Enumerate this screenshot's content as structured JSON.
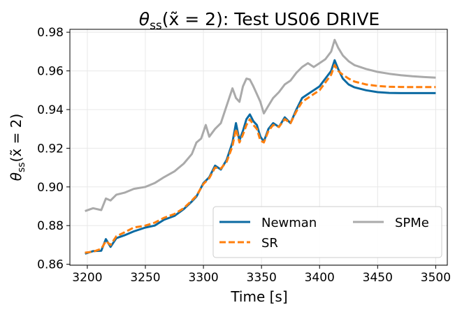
{
  "chart_data": {
    "type": "line",
    "title": "θ_ss(x̃ = 2): Test US06 DRIVE",
    "title_parts": {
      "sym": "θ",
      "sub": "ss",
      "rest": "(x̃ = 2): Test US06 DRIVE"
    },
    "xlabel": "Time [s]",
    "ylabel": "θ_ss(x̃ = 2)",
    "ylabel_parts": {
      "sym": "θ",
      "sub": "ss",
      "rest": "(x̃ = 2)"
    },
    "xlim": [
      3185,
      3510
    ],
    "ylim": [
      0.8595,
      0.9815
    ],
    "xticks": [
      3200,
      3250,
      3300,
      3350,
      3400,
      3450,
      3500
    ],
    "yticks": [
      0.86,
      0.88,
      0.9,
      0.92,
      0.94,
      0.96,
      0.98
    ],
    "xtick_labels": [
      "3200",
      "3250",
      "3300",
      "3350",
      "3400",
      "3450",
      "3500"
    ],
    "ytick_labels": [
      "0.86",
      "0.88",
      "0.90",
      "0.92",
      "0.94",
      "0.96",
      "0.98"
    ],
    "grid": true,
    "legend_placement": "lower-right",
    "series": [
      {
        "name": "Newman",
        "color": "#0b6aa2",
        "dash": "solid",
        "x": [
          3198,
          3205,
          3212,
          3216,
          3220,
          3225,
          3232,
          3240,
          3250,
          3258,
          3266,
          3275,
          3283,
          3290,
          3294,
          3300,
          3305,
          3310,
          3315,
          3320,
          3325,
          3328,
          3331,
          3334,
          3337,
          3340,
          3343,
          3346,
          3349,
          3352,
          3356,
          3360,
          3365,
          3370,
          3375,
          3380,
          3385,
          3390,
          3395,
          3400,
          3405,
          3410,
          3413,
          3416,
          3420,
          3425,
          3430,
          3440,
          3450,
          3460,
          3470,
          3480,
          3490,
          3500
        ],
        "y": [
          0.8655,
          0.8668,
          0.867,
          0.873,
          0.869,
          0.8735,
          0.875,
          0.877,
          0.879,
          0.88,
          0.883,
          0.885,
          0.8885,
          0.8925,
          0.895,
          0.902,
          0.905,
          0.911,
          0.909,
          0.914,
          0.923,
          0.933,
          0.924,
          0.929,
          0.935,
          0.9375,
          0.934,
          0.932,
          0.926,
          0.9235,
          0.93,
          0.933,
          0.931,
          0.936,
          0.933,
          0.94,
          0.946,
          0.948,
          0.95,
          0.952,
          0.956,
          0.96,
          0.9655,
          0.961,
          0.956,
          0.953,
          0.9515,
          0.95,
          0.949,
          0.9486,
          0.9485,
          0.9485,
          0.9485,
          0.9485
        ]
      },
      {
        "name": "SR",
        "color": "#ff7f0e",
        "dash": "dashed",
        "x": [
          3198,
          3205,
          3212,
          3216,
          3220,
          3225,
          3232,
          3240,
          3250,
          3258,
          3266,
          3275,
          3283,
          3290,
          3294,
          3300,
          3305,
          3310,
          3315,
          3320,
          3325,
          3328,
          3331,
          3334,
          3337,
          3340,
          3343,
          3346,
          3349,
          3352,
          3356,
          3360,
          3365,
          3370,
          3375,
          3380,
          3385,
          3390,
          3395,
          3400,
          3405,
          3410,
          3413,
          3416,
          3420,
          3425,
          3430,
          3440,
          3450,
          3460,
          3470,
          3480,
          3490,
          3500
        ],
        "y": [
          0.866,
          0.8665,
          0.868,
          0.872,
          0.87,
          0.8745,
          0.8765,
          0.879,
          0.88,
          0.8815,
          0.884,
          0.886,
          0.889,
          0.893,
          0.8955,
          0.9015,
          0.9045,
          0.91,
          0.9095,
          0.913,
          0.921,
          0.93,
          0.923,
          0.927,
          0.932,
          0.935,
          0.932,
          0.93,
          0.924,
          0.923,
          0.929,
          0.932,
          0.931,
          0.935,
          0.933,
          0.939,
          0.944,
          0.946,
          0.948,
          0.95,
          0.954,
          0.958,
          0.963,
          0.96,
          0.958,
          0.956,
          0.9545,
          0.953,
          0.9522,
          0.9518,
          0.9517,
          0.9516,
          0.9516,
          0.9516
        ]
      },
      {
        "name": "SPMe",
        "color": "#aaaaaa",
        "dash": "solid",
        "x": [
          3198,
          3205,
          3212,
          3216,
          3220,
          3225,
          3232,
          3240,
          3250,
          3258,
          3266,
          3275,
          3283,
          3290,
          3294,
          3298,
          3302,
          3305,
          3310,
          3315,
          3320,
          3325,
          3328,
          3331,
          3334,
          3337,
          3340,
          3343,
          3346,
          3349,
          3352,
          3356,
          3360,
          3365,
          3370,
          3375,
          3380,
          3385,
          3390,
          3395,
          3400,
          3405,
          3410,
          3413,
          3416,
          3420,
          3425,
          3430,
          3440,
          3450,
          3460,
          3470,
          3480,
          3490,
          3500
        ],
        "y": [
          0.8875,
          0.889,
          0.888,
          0.894,
          0.893,
          0.896,
          0.897,
          0.899,
          0.9,
          0.902,
          0.905,
          0.908,
          0.912,
          0.917,
          0.923,
          0.925,
          0.932,
          0.926,
          0.93,
          0.933,
          0.942,
          0.951,
          0.946,
          0.944,
          0.952,
          0.956,
          0.9555,
          0.952,
          0.948,
          0.944,
          0.938,
          0.942,
          0.946,
          0.949,
          0.953,
          0.955,
          0.959,
          0.962,
          0.964,
          0.962,
          0.964,
          0.966,
          0.97,
          0.976,
          0.972,
          0.968,
          0.965,
          0.963,
          0.961,
          0.9595,
          0.9585,
          0.9578,
          0.9572,
          0.9568,
          0.9565
        ]
      }
    ]
  }
}
